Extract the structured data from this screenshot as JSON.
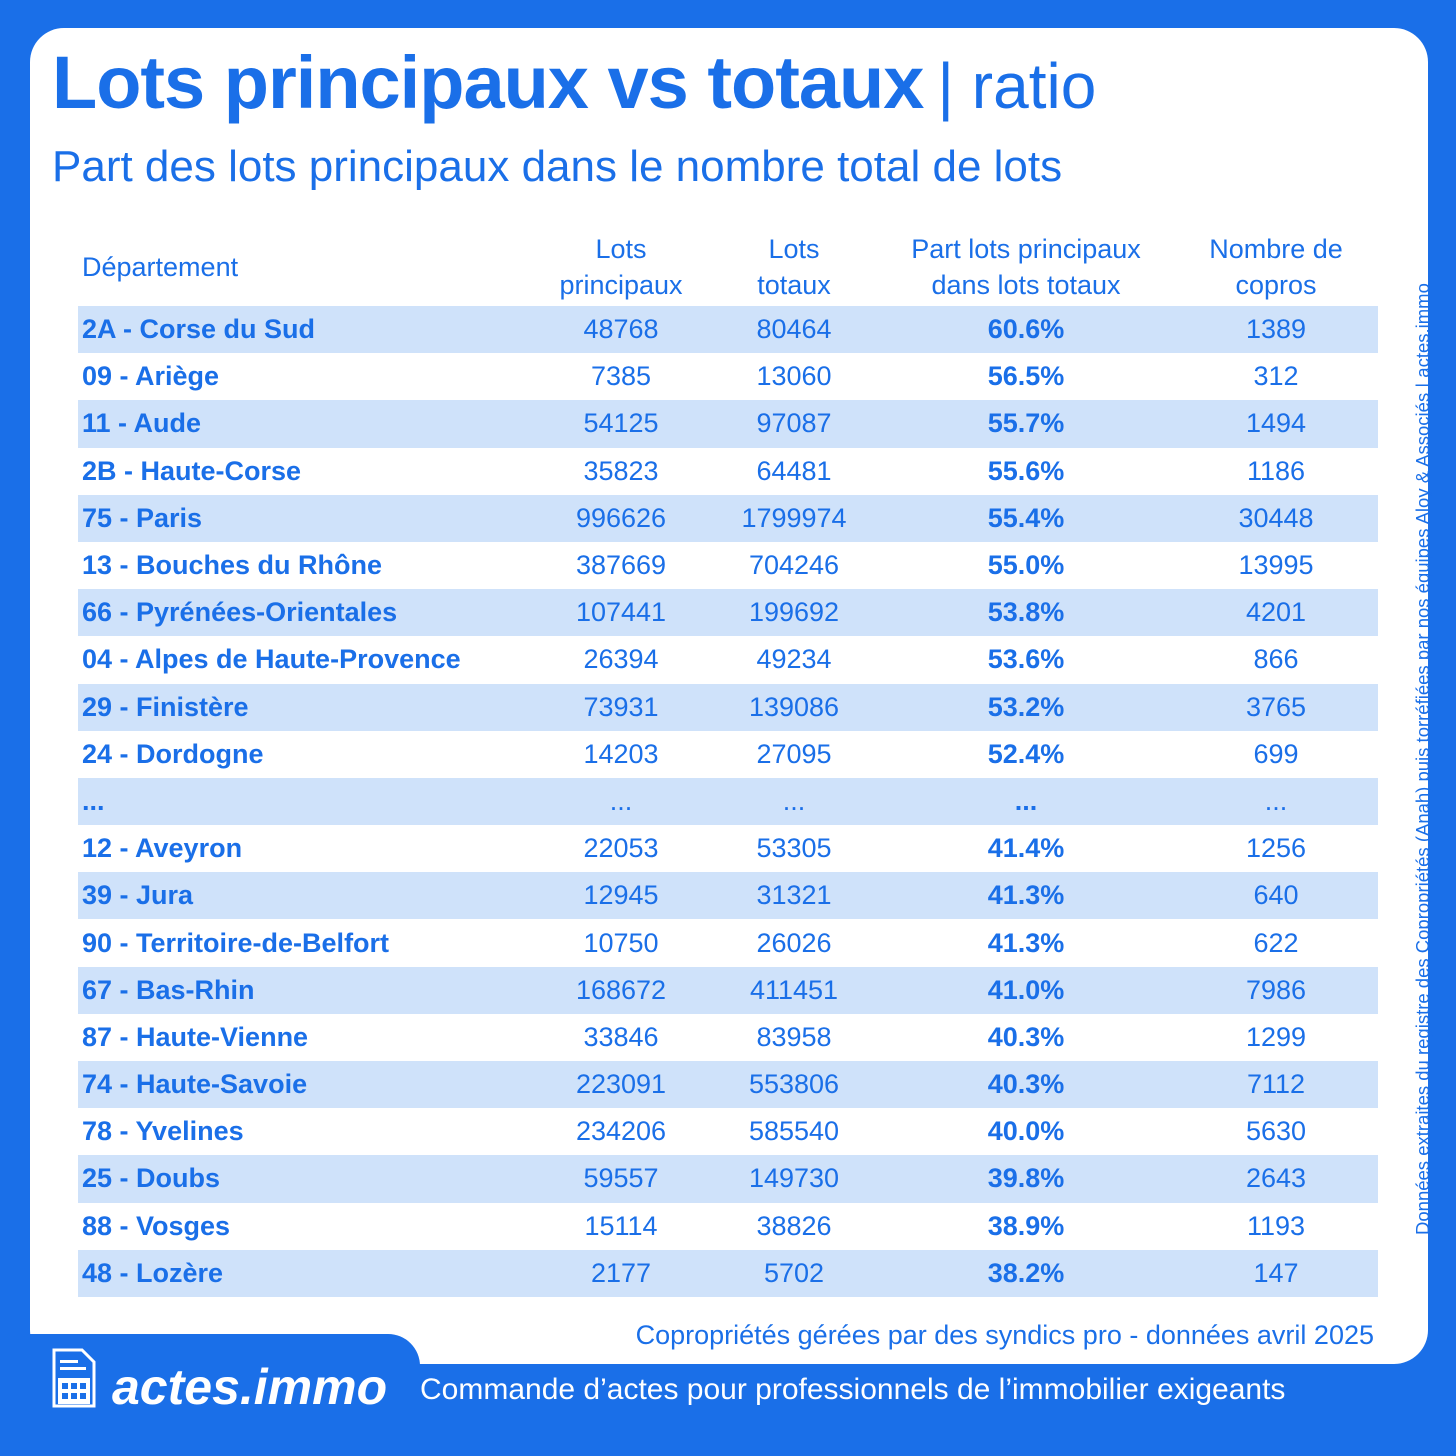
{
  "header": {
    "title": "Lots principaux vs totaux",
    "title_suffix": "| ratio",
    "subtitle": "Part des lots principaux dans le nombre total de lots"
  },
  "table": {
    "columns": [
      "Département",
      "Lots\nprincipaux",
      "Lots\ntotaux",
      "Part lots principaux\ndans lots totaux",
      "Nombre de\ncopros"
    ],
    "rows": [
      [
        "2A - Corse du Sud",
        "48768",
        "80464",
        "60.6%",
        "1389"
      ],
      [
        "09 - Ariège",
        "7385",
        "13060",
        "56.5%",
        "312"
      ],
      [
        "11 - Aude",
        "54125",
        "97087",
        "55.7%",
        "1494"
      ],
      [
        "2B - Haute-Corse",
        "35823",
        "64481",
        "55.6%",
        "1186"
      ],
      [
        "75 - Paris",
        "996626",
        "1799974",
        "55.4%",
        "30448"
      ],
      [
        "13 - Bouches du Rhône",
        "387669",
        "704246",
        "55.0%",
        "13995"
      ],
      [
        "66 - Pyrénées-Orientales",
        "107441",
        "199692",
        "53.8%",
        "4201"
      ],
      [
        "04 - Alpes de Haute-Provence",
        "26394",
        "49234",
        "53.6%",
        "866"
      ],
      [
        "29 - Finistère",
        "73931",
        "139086",
        "53.2%",
        "3765"
      ],
      [
        "24 - Dordogne",
        "14203",
        "27095",
        "52.4%",
        "699"
      ],
      [
        "...",
        "...",
        "...",
        "...",
        "..."
      ],
      [
        "12 - Aveyron",
        "22053",
        "53305",
        "41.4%",
        "1256"
      ],
      [
        "39 - Jura",
        "12945",
        "31321",
        "41.3%",
        "640"
      ],
      [
        "90 - Territoire-de-Belfort",
        "10750",
        "26026",
        "41.3%",
        "622"
      ],
      [
        "67 - Bas-Rhin",
        "168672",
        "411451",
        "41.0%",
        "7986"
      ],
      [
        "87 - Haute-Vienne",
        "33846",
        "83958",
        "40.3%",
        "1299"
      ],
      [
        "74 - Haute-Savoie",
        "223091",
        "553806",
        "40.3%",
        "7112"
      ],
      [
        "78 - Yvelines",
        "234206",
        "585540",
        "40.0%",
        "5630"
      ],
      [
        "25 - Doubs",
        "59557",
        "149730",
        "39.8%",
        "2643"
      ],
      [
        "88 - Vosges",
        "15114",
        "38826",
        "38.9%",
        "1193"
      ],
      [
        "48 - Lozère",
        "2177",
        "5702",
        "38.2%",
        "147"
      ]
    ]
  },
  "footnote": "Copropriétés gérées par des syndics pro - données avril 2025",
  "side_note": "Données extraites du registre des Copropriétés (Anah) puis torréfiées par nos équipes Aloy & Associés | actes.immo",
  "footer": {
    "brand": "actes.immo",
    "tagline": "Commande d’actes pour professionnels de l’immobilier exigeants"
  }
}
